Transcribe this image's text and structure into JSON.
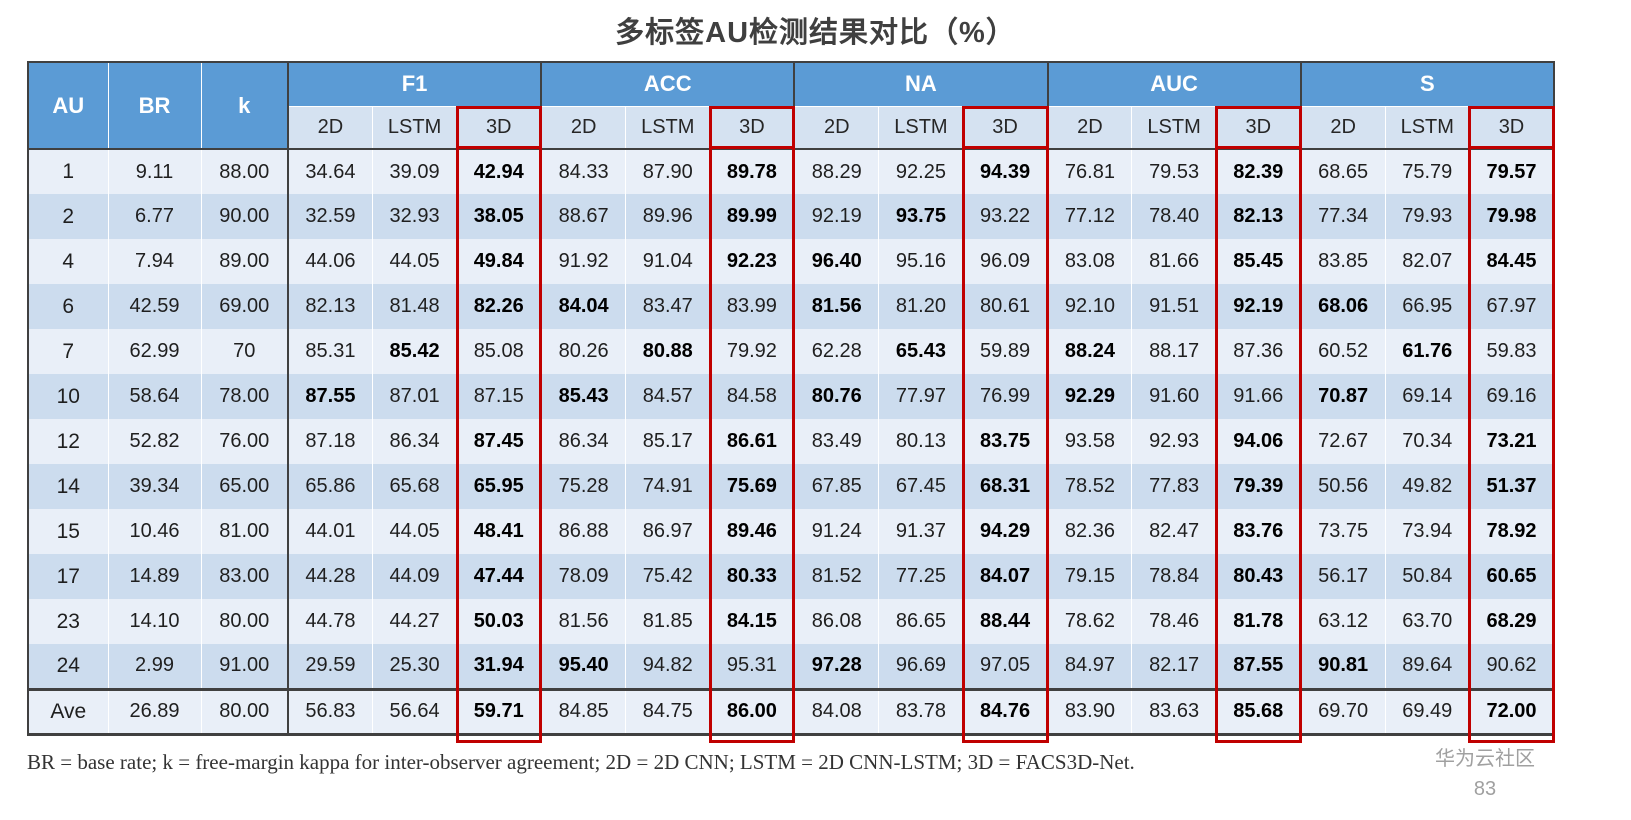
{
  "title": "多标签AU检测结果对比（%）",
  "footnote": "BR = base rate; k = free-margin kappa for inter-observer agreement; 2D = 2D CNN; LSTM = 2D CNN-LSTM; 3D = FACS3D-Net.",
  "watermark": {
    "line1": "华为云社区",
    "line2": "83"
  },
  "colors": {
    "header_bg": "#5b9bd5",
    "band_light": "#e9eff8",
    "band_dark": "#ccdcee",
    "highlight_box": "#c00000"
  },
  "chart_data": {
    "type": "table",
    "title": "多标签AU检测结果对比（%）",
    "fixed_columns": [
      "AU",
      "BR",
      "k"
    ],
    "metric_groups": [
      "F1",
      "ACC",
      "NA",
      "AUC",
      "S"
    ],
    "methods": [
      "2D",
      "LSTM",
      "3D"
    ],
    "rows": [
      {
        "au": "1",
        "br": "9.11",
        "k": "88.00",
        "groups": [
          [
            "34.64",
            "39.09",
            "42.94"
          ],
          [
            "84.33",
            "87.90",
            "89.78"
          ],
          [
            "88.29",
            "92.25",
            "94.39"
          ],
          [
            "76.81",
            "79.53",
            "82.39"
          ],
          [
            "68.65",
            "75.79",
            "79.57"
          ]
        ],
        "bold": [
          2,
          2,
          2,
          2,
          2
        ]
      },
      {
        "au": "2",
        "br": "6.77",
        "k": "90.00",
        "groups": [
          [
            "32.59",
            "32.93",
            "38.05"
          ],
          [
            "88.67",
            "89.96",
            "89.99"
          ],
          [
            "92.19",
            "93.75",
            "93.22"
          ],
          [
            "77.12",
            "78.40",
            "82.13"
          ],
          [
            "77.34",
            "79.93",
            "79.98"
          ]
        ],
        "bold": [
          2,
          2,
          1,
          2,
          2
        ]
      },
      {
        "au": "4",
        "br": "7.94",
        "k": "89.00",
        "groups": [
          [
            "44.06",
            "44.05",
            "49.84"
          ],
          [
            "91.92",
            "91.04",
            "92.23"
          ],
          [
            "96.40",
            "95.16",
            "96.09"
          ],
          [
            "83.08",
            "81.66",
            "85.45"
          ],
          [
            "83.85",
            "82.07",
            "84.45"
          ]
        ],
        "bold": [
          2,
          2,
          0,
          2,
          2
        ]
      },
      {
        "au": "6",
        "br": "42.59",
        "k": "69.00",
        "groups": [
          [
            "82.13",
            "81.48",
            "82.26"
          ],
          [
            "84.04",
            "83.47",
            "83.99"
          ],
          [
            "81.56",
            "81.20",
            "80.61"
          ],
          [
            "92.10",
            "91.51",
            "92.19"
          ],
          [
            "68.06",
            "66.95",
            "67.97"
          ]
        ],
        "bold": [
          2,
          0,
          0,
          2,
          0
        ]
      },
      {
        "au": "7",
        "br": "62.99",
        "k": "70",
        "groups": [
          [
            "85.31",
            "85.42",
            "85.08"
          ],
          [
            "80.26",
            "80.88",
            "79.92"
          ],
          [
            "62.28",
            "65.43",
            "59.89"
          ],
          [
            "88.24",
            "88.17",
            "87.36"
          ],
          [
            "60.52",
            "61.76",
            "59.83"
          ]
        ],
        "bold": [
          1,
          1,
          1,
          0,
          1
        ]
      },
      {
        "au": "10",
        "br": "58.64",
        "k": "78.00",
        "groups": [
          [
            "87.55",
            "87.01",
            "87.15"
          ],
          [
            "85.43",
            "84.57",
            "84.58"
          ],
          [
            "80.76",
            "77.97",
            "76.99"
          ],
          [
            "92.29",
            "91.60",
            "91.66"
          ],
          [
            "70.87",
            "69.14",
            "69.16"
          ]
        ],
        "bold": [
          0,
          0,
          0,
          0,
          0
        ]
      },
      {
        "au": "12",
        "br": "52.82",
        "k": "76.00",
        "groups": [
          [
            "87.18",
            "86.34",
            "87.45"
          ],
          [
            "86.34",
            "85.17",
            "86.61"
          ],
          [
            "83.49",
            "80.13",
            "83.75"
          ],
          [
            "93.58",
            "92.93",
            "94.06"
          ],
          [
            "72.67",
            "70.34",
            "73.21"
          ]
        ],
        "bold": [
          2,
          2,
          2,
          2,
          2
        ]
      },
      {
        "au": "14",
        "br": "39.34",
        "k": "65.00",
        "groups": [
          [
            "65.86",
            "65.68",
            "65.95"
          ],
          [
            "75.28",
            "74.91",
            "75.69"
          ],
          [
            "67.85",
            "67.45",
            "68.31"
          ],
          [
            "78.52",
            "77.83",
            "79.39"
          ],
          [
            "50.56",
            "49.82",
            "51.37"
          ]
        ],
        "bold": [
          2,
          2,
          2,
          2,
          2
        ]
      },
      {
        "au": "15",
        "br": "10.46",
        "k": "81.00",
        "groups": [
          [
            "44.01",
            "44.05",
            "48.41"
          ],
          [
            "86.88",
            "86.97",
            "89.46"
          ],
          [
            "91.24",
            "91.37",
            "94.29"
          ],
          [
            "82.36",
            "82.47",
            "83.76"
          ],
          [
            "73.75",
            "73.94",
            "78.92"
          ]
        ],
        "bold": [
          2,
          2,
          2,
          2,
          2
        ]
      },
      {
        "au": "17",
        "br": "14.89",
        "k": "83.00",
        "groups": [
          [
            "44.28",
            "44.09",
            "47.44"
          ],
          [
            "78.09",
            "75.42",
            "80.33"
          ],
          [
            "81.52",
            "77.25",
            "84.07"
          ],
          [
            "79.15",
            "78.84",
            "80.43"
          ],
          [
            "56.17",
            "50.84",
            "60.65"
          ]
        ],
        "bold": [
          2,
          2,
          2,
          2,
          2
        ]
      },
      {
        "au": "23",
        "br": "14.10",
        "k": "80.00",
        "groups": [
          [
            "44.78",
            "44.27",
            "50.03"
          ],
          [
            "81.56",
            "81.85",
            "84.15"
          ],
          [
            "86.08",
            "86.65",
            "88.44"
          ],
          [
            "78.62",
            "78.46",
            "81.78"
          ],
          [
            "63.12",
            "63.70",
            "68.29"
          ]
        ],
        "bold": [
          2,
          2,
          2,
          2,
          2
        ]
      },
      {
        "au": "24",
        "br": "2.99",
        "k": "91.00",
        "groups": [
          [
            "29.59",
            "25.30",
            "31.94"
          ],
          [
            "95.40",
            "94.82",
            "95.31"
          ],
          [
            "97.28",
            "96.69",
            "97.05"
          ],
          [
            "84.97",
            "82.17",
            "87.55"
          ],
          [
            "90.81",
            "89.64",
            "90.62"
          ]
        ],
        "bold": [
          2,
          0,
          0,
          2,
          0
        ]
      },
      {
        "au": "Ave",
        "br": "26.89",
        "k": "80.00",
        "groups": [
          [
            "56.83",
            "56.64",
            "59.71"
          ],
          [
            "84.85",
            "84.75",
            "86.00"
          ],
          [
            "84.08",
            "83.78",
            "84.76"
          ],
          [
            "83.90",
            "83.63",
            "85.68"
          ],
          [
            "69.70",
            "69.49",
            "72.00"
          ]
        ],
        "bold": [
          2,
          2,
          2,
          2,
          2
        ]
      }
    ]
  }
}
